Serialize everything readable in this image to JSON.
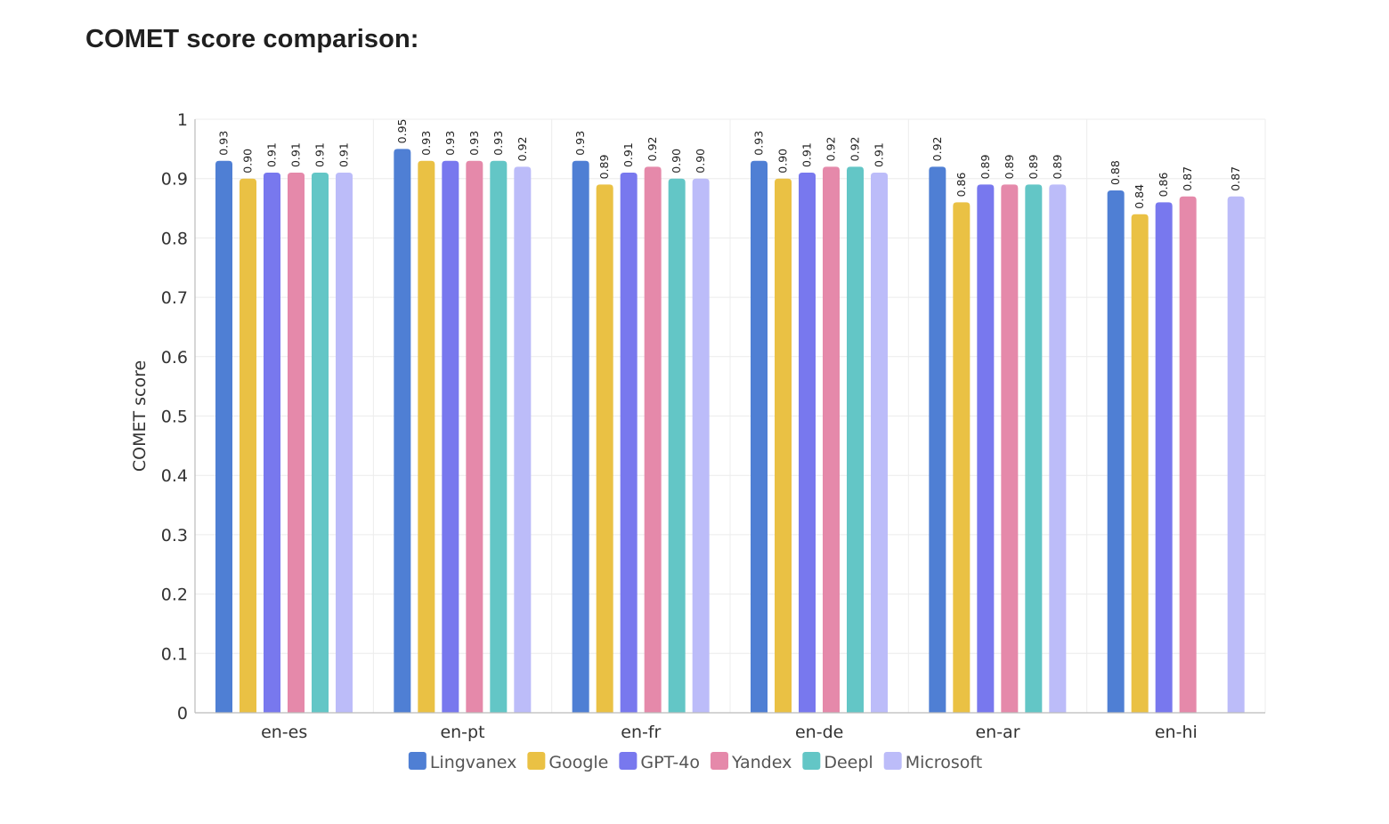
{
  "page": {
    "title": "COMET score comparison:"
  },
  "chart_data": {
    "type": "bar",
    "title": "",
    "xlabel": "",
    "ylabel": "COMET score",
    "ylim": [
      0,
      1
    ],
    "yticks": [
      0,
      0.1,
      0.2,
      0.3,
      0.4,
      0.5,
      0.6,
      0.7,
      0.8,
      0.9,
      1
    ],
    "ytick_labels": [
      "0",
      "0.1",
      "0.2",
      "0.3",
      "0.4",
      "0.5",
      "0.6",
      "0.7",
      "0.8",
      "0.9",
      "1"
    ],
    "grid": true,
    "legend_position": "bottom-center",
    "categories": [
      "en-es",
      "en-pt",
      "en-fr",
      "en-de",
      "en-ar",
      "en-hi"
    ],
    "series": [
      {
        "name": "Lingvanex",
        "color": "#4f7fd4",
        "values": [
          0.93,
          0.95,
          0.93,
          0.93,
          0.92,
          0.88
        ],
        "labels": [
          "0.93",
          "0.95",
          "0.93",
          "0.93",
          "0.92",
          "0.88"
        ]
      },
      {
        "name": "Google",
        "color": "#eac144",
        "values": [
          0.9,
          0.93,
          0.89,
          0.9,
          0.86,
          0.84
        ],
        "labels": [
          "0.90",
          "0.93",
          "0.89",
          "0.90",
          "0.86",
          "0.84"
        ]
      },
      {
        "name": "GPT-4o",
        "color": "#7878ee",
        "values": [
          0.91,
          0.93,
          0.91,
          0.91,
          0.89,
          0.86
        ],
        "labels": [
          "0.91",
          "0.93",
          "0.91",
          "0.91",
          "0.89",
          "0.86"
        ]
      },
      {
        "name": "Yandex",
        "color": "#e589aa",
        "values": [
          0.91,
          0.93,
          0.92,
          0.92,
          0.89,
          0.87
        ],
        "labels": [
          "0.91",
          "0.93",
          "0.92",
          "0.92",
          "0.89",
          "0.87"
        ]
      },
      {
        "name": "Deepl",
        "color": "#63c6c6",
        "values": [
          0.91,
          0.93,
          0.9,
          0.92,
          0.89,
          null
        ],
        "labels": [
          "0.91",
          "0.93",
          "0.90",
          "0.92",
          "0.89",
          null
        ]
      },
      {
        "name": "Microsoft",
        "color": "#bcbcf9",
        "values": [
          0.91,
          0.92,
          0.9,
          0.91,
          0.89,
          0.87
        ],
        "labels": [
          "0.91",
          "0.92",
          "0.90",
          "0.91",
          "0.89",
          "0.87"
        ]
      }
    ]
  }
}
